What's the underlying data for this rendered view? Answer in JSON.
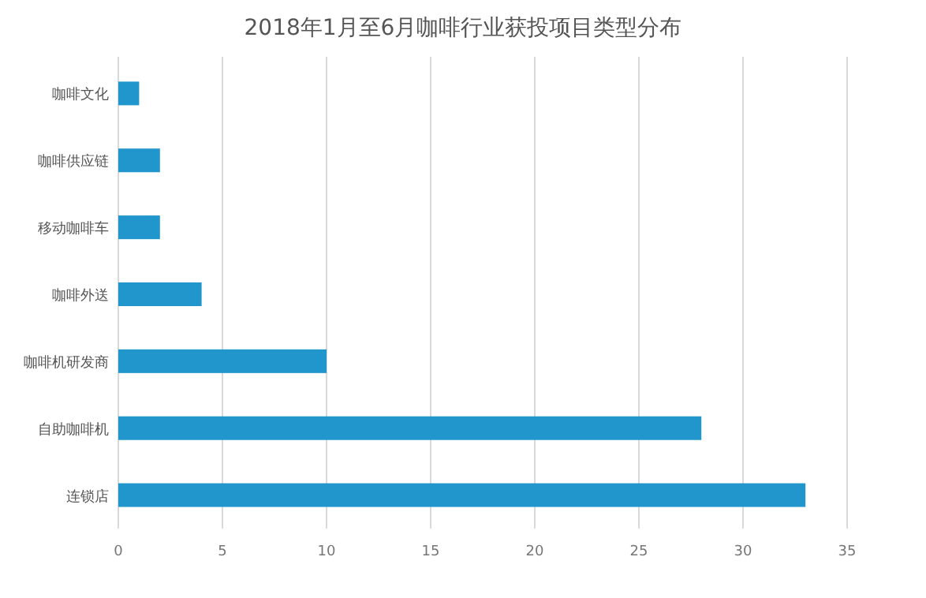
{
  "chart_data": {
    "type": "bar",
    "orientation": "horizontal",
    "title": "2018年1月至6月咖啡行业获投项目类型分布",
    "categories": [
      "咖啡文化",
      "咖啡供应链",
      "移动咖啡车",
      "咖啡外送",
      "咖啡机研发商",
      "自助咖啡机",
      "连锁店"
    ],
    "values": [
      1,
      2,
      2,
      4,
      10,
      28,
      33
    ],
    "color": "#2196cc",
    "xlim": [
      0,
      35
    ],
    "xticks": [
      0,
      5,
      10,
      15,
      20,
      25,
      30,
      35
    ],
    "grid": "x"
  }
}
